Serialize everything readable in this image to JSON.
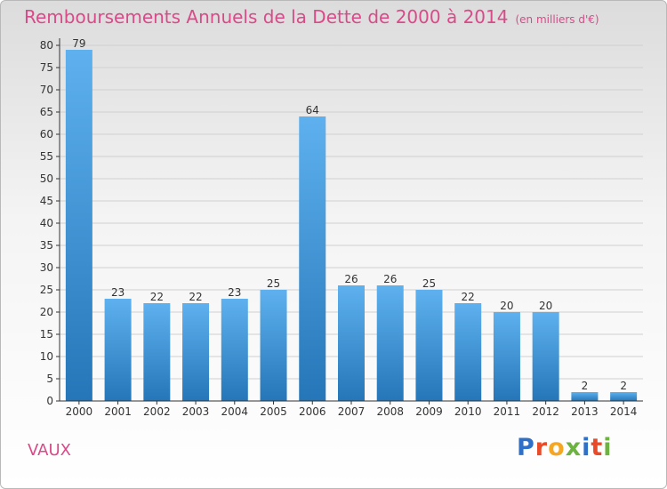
{
  "header": {
    "title": "Remboursements Annuels de la Dette de 2000 à 2014",
    "unit": "(en milliers d'€)"
  },
  "footer": {
    "commune": "VAUX",
    "logo_letters": [
      "P",
      "r",
      "o",
      "x",
      "i",
      "t",
      "i"
    ],
    "logo_colors": [
      "#2e6fc8",
      "#e84b2a",
      "#f5a623",
      "#6cb33f",
      "#2e6fc8",
      "#e84b2a",
      "#6cb33f"
    ]
  },
  "chart_data": {
    "type": "bar",
    "title": "Remboursements Annuels de la Dette de 2000 à 2014",
    "ylabel": "",
    "xlabel": "",
    "categories": [
      "2000",
      "2001",
      "2002",
      "2003",
      "2004",
      "2005",
      "2006",
      "2007",
      "2008",
      "2009",
      "2010",
      "2011",
      "2012",
      "2013",
      "2014"
    ],
    "values": [
      79,
      23,
      22,
      22,
      23,
      25,
      64,
      26,
      26,
      25,
      22,
      20,
      20,
      2,
      2
    ],
    "ylim": [
      0,
      80
    ],
    "yticks": [
      0,
      5,
      10,
      15,
      20,
      25,
      30,
      35,
      40,
      45,
      50,
      55,
      60,
      65,
      70,
      75,
      80
    ],
    "grid": true,
    "colors": {
      "bar_top": "#5eb1ee",
      "bar_bottom": "#2576b8",
      "grid": "#d0d0d0",
      "axis": "#333333"
    }
  }
}
